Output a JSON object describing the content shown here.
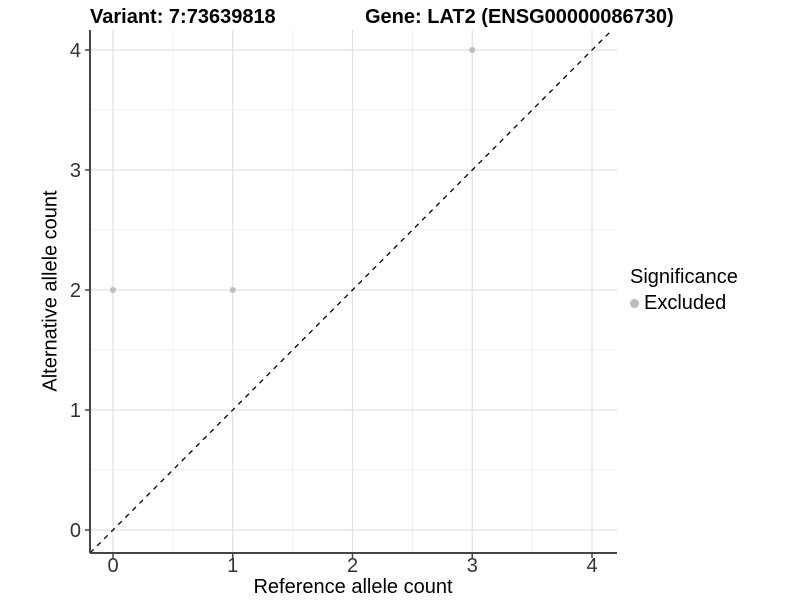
{
  "titles": {
    "variant": "Variant: 7:73639818",
    "gene": "Gene: LAT2 (ENSG00000086730)"
  },
  "axes": {
    "xlabel": "Reference allele count",
    "ylabel": "Alternative allele count"
  },
  "legend": {
    "title": "Significance",
    "entries": [
      {
        "label": "Excluded",
        "color": "#bdbdbd"
      }
    ],
    "position": "right"
  },
  "chart_data": {
    "type": "scatter",
    "title": "Variant: 7:73639818 / Gene: LAT2 (ENSG00000086730)",
    "xlabel": "Reference allele count",
    "ylabel": "Alternative allele count",
    "xlim": [
      -0.2,
      4.2
    ],
    "ylim": [
      -0.2,
      4.2
    ],
    "x_ticks": [
      0,
      1,
      2,
      3,
      4
    ],
    "y_ticks": [
      0,
      1,
      2,
      3,
      4
    ],
    "minor_ticks": [
      0.5,
      1.5,
      2.5,
      3.5
    ],
    "grid": true,
    "legend_position": "right",
    "series": [
      {
        "name": "Excluded",
        "color": "#bdbdbd",
        "points": [
          {
            "x": 0,
            "y": 2
          },
          {
            "x": 1,
            "y": 2
          },
          {
            "x": 3,
            "y": 4
          }
        ]
      }
    ],
    "identity_line": {
      "type": "y=x",
      "style": "dashed",
      "color": "#000000"
    }
  },
  "style_colors": {
    "axis_line": "#454545",
    "tick_label": "#333333",
    "grid_major": "#e2e2e2",
    "grid_minor": "#efefef"
  }
}
